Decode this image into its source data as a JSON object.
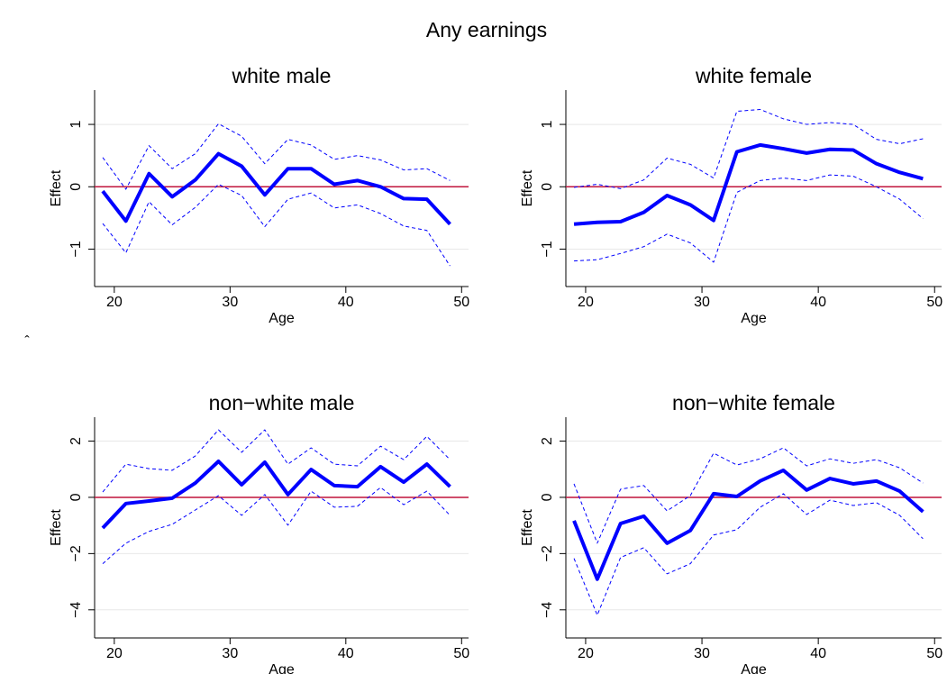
{
  "title": "Any earnings",
  "mark": "ˆ",
  "chart_data": [
    {
      "type": "line",
      "title": "white male",
      "xlabel": "Age",
      "ylabel": "Effect",
      "x": [
        19,
        21,
        23,
        25,
        27,
        29,
        31,
        33,
        35,
        37,
        39,
        41,
        43,
        45,
        47,
        49
      ],
      "xlim": [
        18.3,
        50.6
      ],
      "xticks": [
        20,
        30,
        40,
        50
      ],
      "ylim": [
        -1.6,
        1.55
      ],
      "yticks": [
        {
          "value": -1,
          "label": "−1"
        },
        0,
        1
      ],
      "grid": true,
      "hline": 0,
      "hline_color": "#c0143c",
      "series": [
        {
          "color": "#0000ff",
          "width": 4,
          "values": [
            -0.07,
            -0.55,
            0.21,
            -0.16,
            0.11,
            0.53,
            0.33,
            -0.13,
            0.29,
            0.29,
            0.04,
            0.1,
            0,
            -0.19,
            -0.2,
            -0.6
          ]
        },
        {
          "color": "#0000ff",
          "width": 1,
          "dashed": true,
          "values": [
            0.47,
            -0.04,
            0.66,
            0.29,
            0.53,
            1.01,
            0.81,
            0.37,
            0.76,
            0.67,
            0.44,
            0.5,
            0.43,
            0.27,
            0.29,
            0.1
          ]
        },
        {
          "color": "#0000ff",
          "width": 1,
          "dashed": true,
          "values": [
            -0.59,
            -1.06,
            -0.24,
            -0.61,
            -0.33,
            0.04,
            -0.14,
            -0.64,
            -0.2,
            -0.1,
            -0.34,
            -0.29,
            -0.43,
            -0.63,
            -0.7,
            -1.27
          ]
        }
      ]
    },
    {
      "type": "line",
      "title": "white female",
      "xlabel": "Age",
      "ylabel": "Effect",
      "x": [
        19,
        21,
        23,
        25,
        27,
        29,
        31,
        33,
        35,
        37,
        39,
        41,
        43,
        45,
        47,
        49
      ],
      "xlim": [
        18.3,
        50.6
      ],
      "xticks": [
        20,
        30,
        40,
        50
      ],
      "ylim": [
        -1.6,
        1.55
      ],
      "yticks": [
        {
          "value": -1,
          "label": "−1"
        },
        0,
        1
      ],
      "grid": true,
      "hline": 0,
      "hline_color": "#c0143c",
      "series": [
        {
          "color": "#0000ff",
          "width": 4,
          "values": [
            -0.6,
            -0.57,
            -0.56,
            -0.41,
            -0.14,
            -0.29,
            -0.54,
            0.56,
            0.67,
            0.61,
            0.54,
            0.6,
            0.59,
            0.37,
            0.23,
            0.13
          ]
        },
        {
          "color": "#0000ff",
          "width": 1,
          "dashed": true,
          "values": [
            -0.01,
            0.04,
            -0.03,
            0.11,
            0.46,
            0.36,
            0.14,
            1.21,
            1.24,
            1.09,
            1.0,
            1.03,
            1.0,
            0.76,
            0.69,
            0.77
          ]
        },
        {
          "color": "#0000ff",
          "width": 1,
          "dashed": true,
          "values": [
            -1.19,
            -1.17,
            -1.07,
            -0.96,
            -0.76,
            -0.9,
            -1.21,
            -0.09,
            0.1,
            0.14,
            0.1,
            0.19,
            0.17,
            0,
            -0.2,
            -0.51
          ]
        }
      ]
    },
    {
      "type": "line",
      "title": "non−white male",
      "xlabel": "Age",
      "ylabel": "Effect",
      "x": [
        19,
        21,
        23,
        25,
        27,
        29,
        31,
        33,
        35,
        37,
        39,
        41,
        43,
        45,
        47,
        49
      ],
      "xlim": [
        18.3,
        50.6
      ],
      "xticks": [
        20,
        30,
        40,
        50
      ],
      "ylim": [
        -5,
        2.85
      ],
      "yticks": [
        {
          "value": -4,
          "label": "−4"
        },
        {
          "value": -2,
          "label": "−2"
        },
        0,
        2
      ],
      "grid": true,
      "hline": 0,
      "hline_color": "#c0143c",
      "series": [
        {
          "color": "#0000ff",
          "width": 4,
          "values": [
            -1.09,
            -0.22,
            -0.13,
            -0.03,
            0.51,
            1.28,
            0.45,
            1.25,
            0.1,
            0.99,
            0.42,
            0.38,
            1.09,
            0.54,
            1.18,
            0.38
          ]
        },
        {
          "color": "#0000ff",
          "width": 1,
          "dashed": true,
          "values": [
            0.19,
            1.18,
            1.02,
            0.96,
            1.47,
            2.4,
            1.6,
            2.4,
            1.18,
            1.76,
            1.18,
            1.12,
            1.82,
            1.34,
            2.17,
            1.34
          ]
        },
        {
          "color": "#0000ff",
          "width": 1,
          "dashed": true,
          "values": [
            -2.36,
            -1.63,
            -1.21,
            -0.96,
            -0.45,
            0.06,
            -0.64,
            0.1,
            -0.99,
            0.22,
            -0.35,
            -0.32,
            0.35,
            -0.26,
            0.22,
            -0.64
          ]
        }
      ]
    },
    {
      "type": "line",
      "title": "non−white female",
      "xlabel": "Age",
      "ylabel": "Effect",
      "x": [
        19,
        21,
        23,
        25,
        27,
        29,
        31,
        33,
        35,
        37,
        39,
        41,
        43,
        45,
        47,
        49
      ],
      "xlim": [
        18.3,
        50.6
      ],
      "xticks": [
        20,
        30,
        40,
        50
      ],
      "ylim": [
        -5,
        2.85
      ],
      "yticks": [
        {
          "value": -4,
          "label": "−4"
        },
        {
          "value": -2,
          "label": "−2"
        },
        0,
        2
      ],
      "grid": true,
      "hline": 0,
      "hline_color": "#c0143c",
      "series": [
        {
          "color": "#0000ff",
          "width": 4,
          "values": [
            -0.83,
            -2.91,
            -0.93,
            -0.67,
            -1.63,
            -1.18,
            0.13,
            0.03,
            0.58,
            0.96,
            0.26,
            0.67,
            0.48,
            0.58,
            0.22,
            -0.51
          ]
        },
        {
          "color": "#0000ff",
          "width": 1,
          "dashed": true,
          "values": [
            0.48,
            -1.63,
            0.29,
            0.42,
            -0.48,
            0.06,
            1.57,
            1.15,
            1.37,
            1.76,
            1.12,
            1.37,
            1.21,
            1.34,
            1.05,
            0.51
          ]
        },
        {
          "color": "#0000ff",
          "width": 1,
          "dashed": true,
          "values": [
            -2.17,
            -4.19,
            -2.14,
            -1.79,
            -2.72,
            -2.36,
            -1.34,
            -1.15,
            -0.35,
            0.13,
            -0.61,
            -0.1,
            -0.29,
            -0.19,
            -0.64,
            -1.47
          ]
        }
      ]
    }
  ]
}
